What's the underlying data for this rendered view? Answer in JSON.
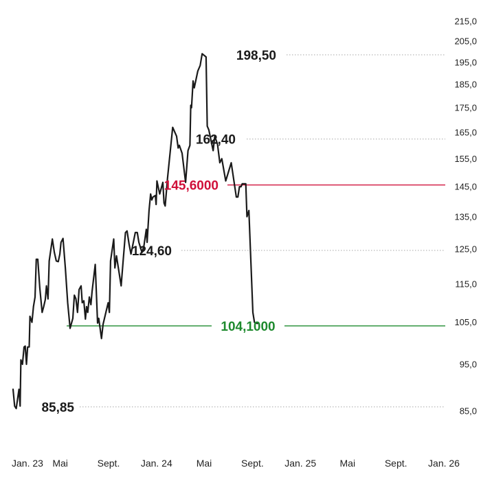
{
  "chart_data": {
    "type": "line",
    "y_axis": {
      "position": "right",
      "range": [
        85,
        215
      ],
      "tick_labels": [
        "215,0",
        "205,0",
        "195,0",
        "185,0",
        "175,0",
        "165,0",
        "155,0",
        "145,0",
        "135,0",
        "125,0",
        "115,0",
        "105,0",
        "95,0",
        "85,0"
      ],
      "tick_values": [
        215,
        205,
        195,
        185,
        175,
        165,
        155,
        145,
        135,
        125,
        115,
        105,
        95,
        85
      ],
      "scale": "log"
    },
    "x_axis": {
      "range": [
        "2023-01",
        "2026-01"
      ],
      "tick_labels": [
        "Jan. 23",
        "Mai",
        "Sept.",
        "Jan. 24",
        "Mai",
        "Sept.",
        "Jan. 25",
        "Mai",
        "Sept.",
        "Jan. 26"
      ],
      "tick_values": [
        "2023-01",
        "2023-05",
        "2023-09",
        "2024-01",
        "2024-05",
        "2024-09",
        "2025-01",
        "2025-05",
        "2025-09",
        "2026-01"
      ]
    },
    "series": [
      {
        "color": "#1a1a1a",
        "points": [
          [
            "2023-01-01",
            89.5
          ],
          [
            "2023-01-05",
            86.0
          ],
          [
            "2023-01-09",
            85.5
          ],
          [
            "2023-01-16",
            89.5
          ],
          [
            "2023-01-19",
            86.0
          ],
          [
            "2023-01-21",
            96.0
          ],
          [
            "2023-01-25",
            95.0
          ],
          [
            "2023-01-29",
            99.0
          ],
          [
            "2023-02-01",
            99.2
          ],
          [
            "2023-02-04",
            95.0
          ],
          [
            "2023-02-07",
            99.0
          ],
          [
            "2023-02-11",
            99.0
          ],
          [
            "2023-02-13",
            106.5
          ],
          [
            "2023-02-18",
            105.0
          ],
          [
            "2023-02-22",
            109.0
          ],
          [
            "2023-02-26",
            111.5
          ],
          [
            "2023-03-01",
            122.0
          ],
          [
            "2023-03-05",
            122.0
          ],
          [
            "2023-03-10",
            114.0
          ],
          [
            "2023-03-16",
            107.5
          ],
          [
            "2023-03-20",
            109.0
          ],
          [
            "2023-03-24",
            110.8
          ],
          [
            "2023-03-27",
            114.5
          ],
          [
            "2023-03-31",
            111.0
          ],
          [
            "2023-04-03",
            121.5
          ],
          [
            "2023-04-11",
            128.0
          ],
          [
            "2023-04-16",
            124.0
          ],
          [
            "2023-04-21",
            121.5
          ],
          [
            "2023-04-26",
            121.3
          ],
          [
            "2023-04-30",
            123.5
          ],
          [
            "2023-05-03",
            127.0
          ],
          [
            "2023-05-08",
            128.2
          ],
          [
            "2023-05-14",
            119.5
          ],
          [
            "2023-05-20",
            110.0
          ],
          [
            "2023-05-26",
            103.5
          ],
          [
            "2023-06-02",
            106.0
          ],
          [
            "2023-06-06",
            112.0
          ],
          [
            "2023-06-10",
            111.0
          ],
          [
            "2023-06-14",
            107.5
          ],
          [
            "2023-06-18",
            113.5
          ],
          [
            "2023-06-23",
            114.5
          ],
          [
            "2023-06-26",
            110.0
          ],
          [
            "2023-06-30",
            110.5
          ],
          [
            "2023-07-04",
            105.8
          ],
          [
            "2023-07-07",
            109.0
          ],
          [
            "2023-07-10",
            107.5
          ],
          [
            "2023-07-14",
            111.5
          ],
          [
            "2023-07-18",
            109.5
          ],
          [
            "2023-07-21",
            113.0
          ],
          [
            "2023-07-29",
            120.5
          ],
          [
            "2023-08-04",
            104.8
          ],
          [
            "2023-08-07",
            106.0
          ],
          [
            "2023-08-14",
            101.0
          ],
          [
            "2023-08-18",
            104.5
          ],
          [
            "2023-08-31",
            110.0
          ],
          [
            "2023-09-03",
            107.5
          ],
          [
            "2023-09-06",
            121.5
          ],
          [
            "2023-09-14",
            128.0
          ],
          [
            "2023-09-17",
            119.5
          ],
          [
            "2023-09-21",
            123.0
          ],
          [
            "2023-10-03",
            114.5
          ],
          [
            "2023-10-08",
            121.5
          ],
          [
            "2023-10-14",
            130.0
          ],
          [
            "2023-10-18",
            130.5
          ],
          [
            "2023-10-23",
            126.5
          ],
          [
            "2023-10-28",
            123.5
          ],
          [
            "2023-11-08",
            130.0
          ],
          [
            "2023-11-13",
            130.0
          ],
          [
            "2023-11-17",
            127.0
          ],
          [
            "2023-11-25",
            124.0
          ],
          [
            "2023-11-30",
            126.0
          ],
          [
            "2023-12-06",
            131.0
          ],
          [
            "2023-12-08",
            127.0
          ],
          [
            "2023-12-13",
            137.0
          ],
          [
            "2023-12-17",
            142.5
          ],
          [
            "2023-12-20",
            140.5
          ],
          [
            "2023-12-23",
            141.5
          ],
          [
            "2023-12-29",
            142.0
          ],
          [
            "2023-12-31",
            139.0
          ],
          [
            "2024-01-02",
            147.0
          ],
          [
            "2024-01-09",
            142.5
          ],
          [
            "2024-01-17",
            146.5
          ],
          [
            "2024-01-20",
            139.5
          ],
          [
            "2024-01-23",
            138.5
          ],
          [
            "2024-01-29",
            148.0
          ],
          [
            "2024-02-11",
            167.0
          ],
          [
            "2024-02-21",
            163.5
          ],
          [
            "2024-02-25",
            159.0
          ],
          [
            "2024-02-28",
            160.0
          ],
          [
            "2024-03-06",
            157.0
          ],
          [
            "2024-03-15",
            146.5
          ],
          [
            "2024-03-21",
            158.0
          ],
          [
            "2024-03-26",
            160.0
          ],
          [
            "2024-03-28",
            176.0
          ],
          [
            "2024-03-30",
            175.0
          ],
          [
            "2024-04-03",
            186.5
          ],
          [
            "2024-04-06",
            183.5
          ],
          [
            "2024-04-15",
            191.0
          ],
          [
            "2024-04-21",
            193.5
          ],
          [
            "2024-04-26",
            199.0
          ],
          [
            "2024-05-06",
            197.5
          ],
          [
            "2024-05-09",
            167.5
          ],
          [
            "2024-05-13",
            166.0
          ],
          [
            "2024-05-24",
            158.0
          ],
          [
            "2024-05-28",
            163.5
          ],
          [
            "2024-06-04",
            160.5
          ],
          [
            "2024-06-10",
            153.5
          ],
          [
            "2024-06-15",
            155.0
          ],
          [
            "2024-06-25",
            147.0
          ],
          [
            "2024-07-09",
            153.5
          ],
          [
            "2024-07-22",
            141.5
          ],
          [
            "2024-07-26",
            141.5
          ],
          [
            "2024-07-30",
            145.0
          ],
          [
            "2024-08-03",
            145.0
          ],
          [
            "2024-08-06",
            146.0
          ],
          [
            "2024-08-15",
            146.0
          ],
          [
            "2024-08-18",
            135.0
          ],
          [
            "2024-08-23",
            137.0
          ],
          [
            "2024-09-02",
            107.5
          ],
          [
            "2024-09-06",
            105.0
          ],
          [
            "2024-09-10",
            104.8
          ],
          [
            "2024-09-14",
            104.7
          ]
        ]
      }
    ],
    "annotations": [
      {
        "label": "198,50",
        "value": 198.5,
        "date": "2025-05-01",
        "line": "dotted"
      },
      {
        "label": "162,40",
        "value": 162.4,
        "date": "2025-01-12",
        "line": "dotted"
      },
      {
        "label": "124,60",
        "value": 124.6,
        "date": "2024-01-01",
        "line": "dotted"
      },
      {
        "label": "85,85",
        "value": 85.85,
        "date": "2023-05-01",
        "line": "dotted"
      }
    ],
    "levels": [
      {
        "label": "145,6000",
        "value": 145.6,
        "color": "#d0103a"
      },
      {
        "label": "104,1000",
        "value": 104.1,
        "color": "#1e8a2e"
      }
    ],
    "grid": false,
    "legend": "none"
  }
}
